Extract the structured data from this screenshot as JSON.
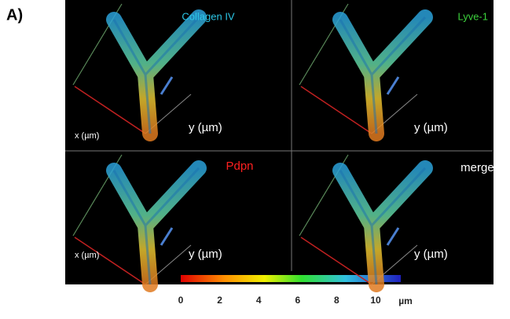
{
  "panel_label": "A)",
  "panels": [
    {
      "label": "Collagen IV",
      "y_axis": "y (µm)",
      "x_axis": "x (µm)"
    },
    {
      "label": "Lyve-1",
      "y_axis": "y (µm)"
    },
    {
      "label": "Pdpn",
      "y_axis": "y (µm)",
      "x_axis": "x (µm)"
    },
    {
      "label": "merged",
      "y_axis": "y (µm)"
    }
  ],
  "colorbar": {
    "ticks": [
      0,
      2,
      4,
      6,
      8,
      10
    ],
    "unit": "µm"
  }
}
